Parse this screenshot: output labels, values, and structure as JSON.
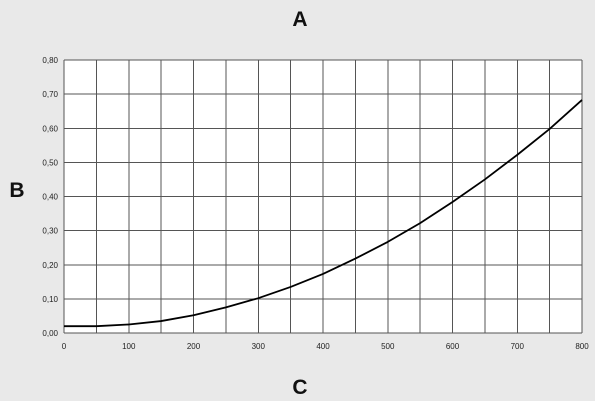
{
  "chart_data": {
    "type": "line",
    "title": "A",
    "xlabel": "C",
    "ylabel": "B",
    "xlim": [
      0,
      800
    ],
    "ylim": [
      0,
      0.8
    ],
    "x_ticks": [
      0,
      50,
      100,
      150,
      200,
      250,
      300,
      350,
      400,
      450,
      500,
      550,
      600,
      650,
      700,
      750,
      800
    ],
    "x_tick_labels": [
      "0",
      "100",
      "200",
      "300",
      "400",
      "500",
      "600",
      "700",
      "800"
    ],
    "y_ticks": [
      0,
      0.1,
      0.2,
      0.3,
      0.4,
      0.5,
      0.6,
      0.7,
      0.8
    ],
    "y_tick_labels": [
      "0,00",
      "0,10",
      "0,20",
      "0,30",
      "0,40",
      "0,50",
      "0,60",
      "0,70",
      "0,80"
    ],
    "grid": true,
    "legend": "none",
    "colors": {
      "background": "#e9e9e9",
      "plot_area": "#ffffff",
      "grid": "#555555",
      "line": "#000000"
    },
    "series": [
      {
        "x": [
          0,
          50,
          100,
          150,
          200,
          250,
          300,
          350,
          400,
          450,
          500,
          550,
          600,
          650,
          700,
          750,
          800
        ],
        "values": [
          0.02,
          0.02,
          0.025,
          0.035,
          0.052,
          0.075,
          0.102,
          0.135,
          0.173,
          0.218,
          0.267,
          0.322,
          0.384,
          0.45,
          0.522,
          0.598,
          0.683
        ]
      }
    ]
  }
}
